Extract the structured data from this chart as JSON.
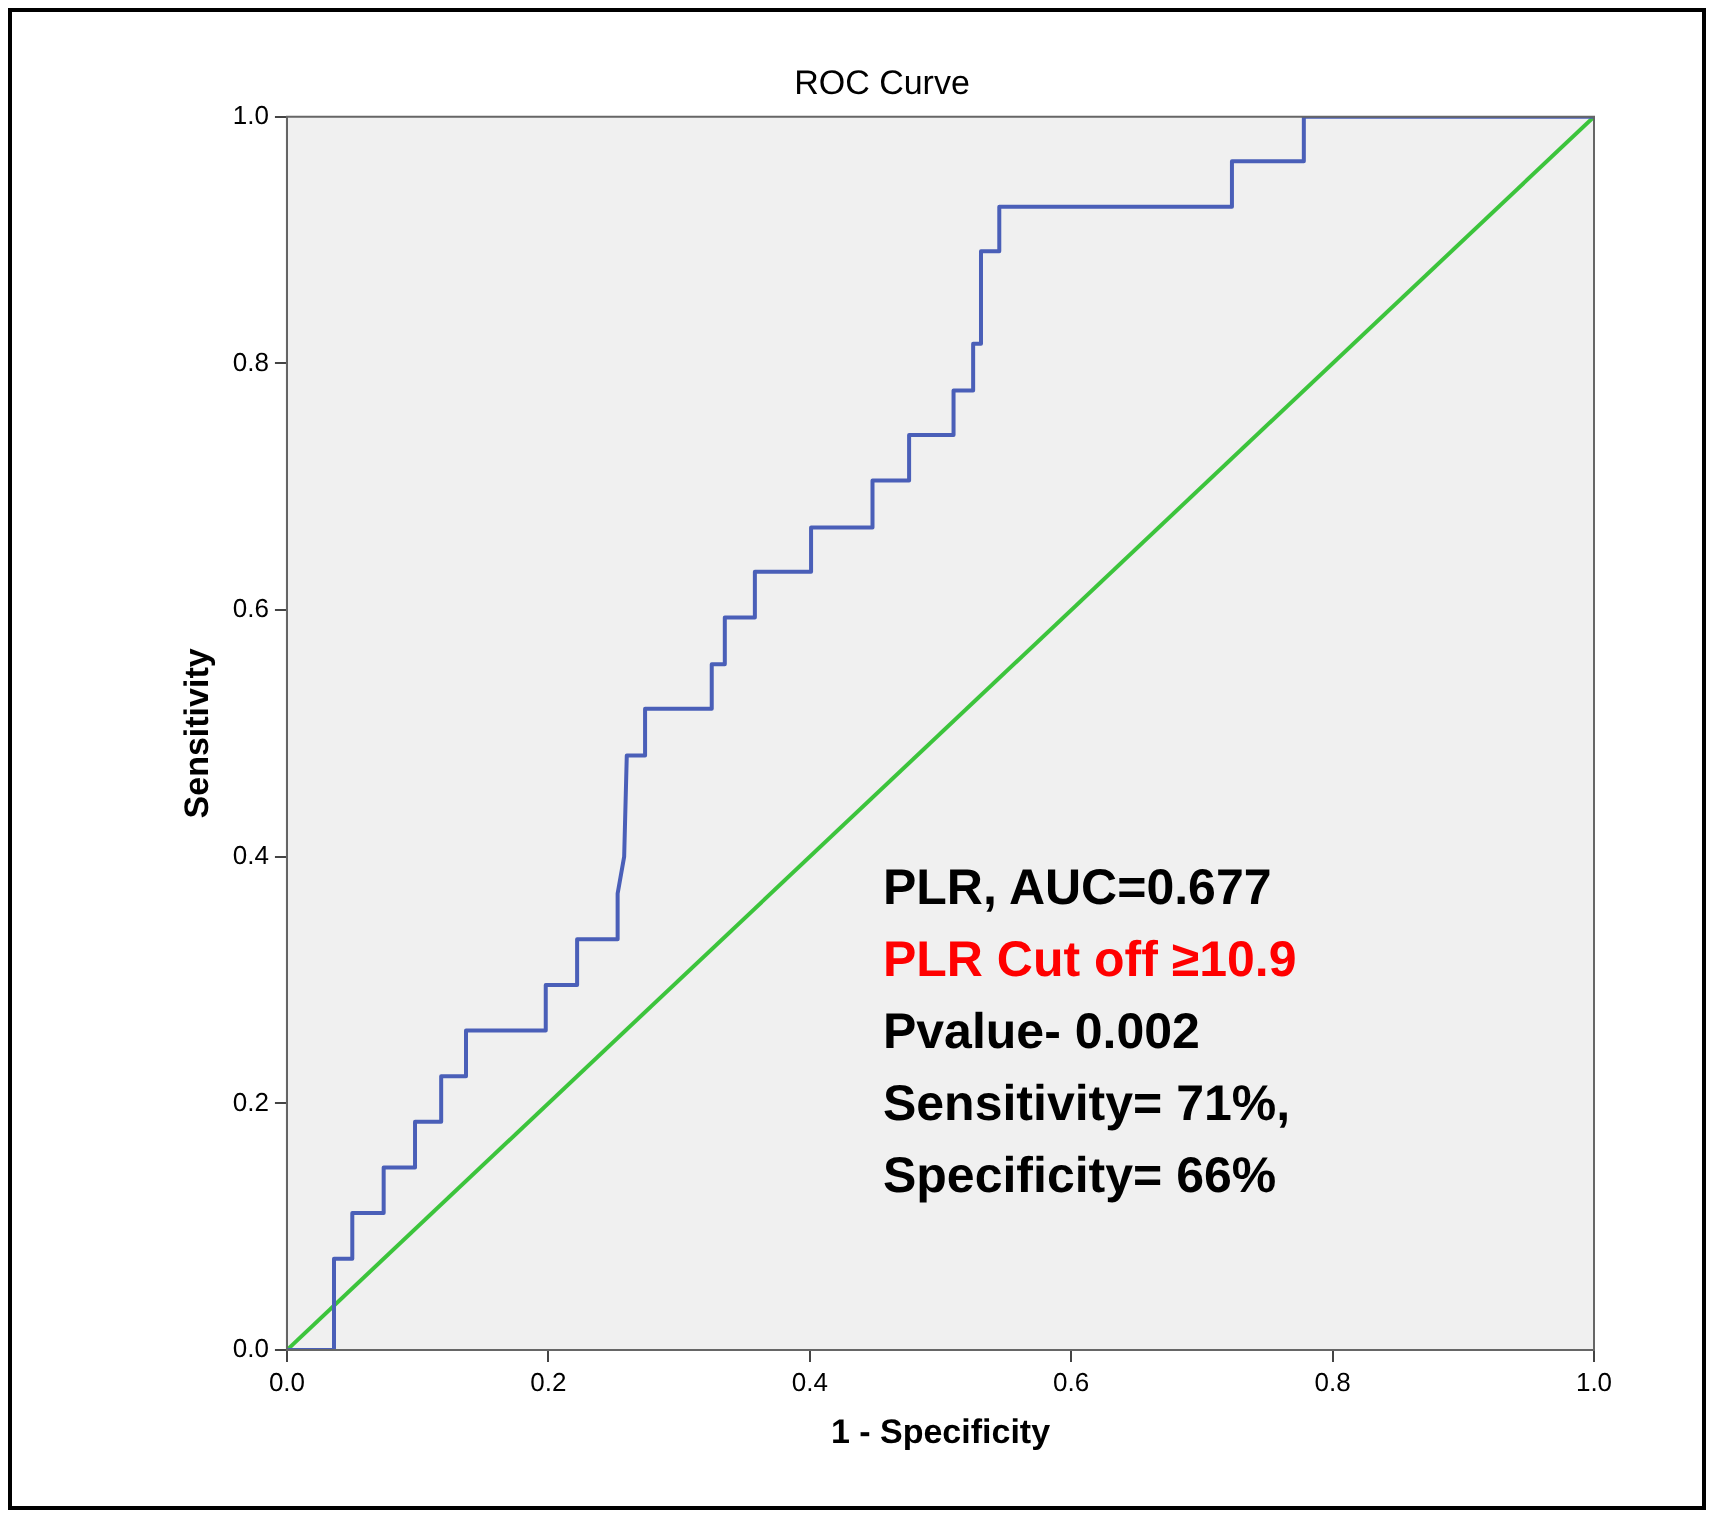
{
  "chart_data": {
    "type": "line",
    "title": "ROC Curve",
    "xlabel": "1 - Specificity",
    "ylabel": "Sensitivity",
    "xlim": [
      0,
      1
    ],
    "ylim": [
      0,
      1
    ],
    "xticks": [
      {
        "value": 0,
        "label": "0.0"
      },
      {
        "value": 0.2,
        "label": "0.2"
      },
      {
        "value": 0.4,
        "label": "0.4"
      },
      {
        "value": 0.6,
        "label": "0.6"
      },
      {
        "value": 0.8,
        "label": "0.8"
      },
      {
        "value": 1,
        "label": "1.0"
      }
    ],
    "yticks": [
      {
        "value": 0,
        "label": "0.0"
      },
      {
        "value": 0.2,
        "label": "0.2"
      },
      {
        "value": 0.4,
        "label": "0.4"
      },
      {
        "value": 0.6,
        "label": "0.6"
      },
      {
        "value": 0.8,
        "label": "0.8"
      },
      {
        "value": 1,
        "label": "1.0"
      }
    ],
    "grid": false,
    "legend": false,
    "marker": "none",
    "line_style": "solid",
    "series": [
      {
        "color": "#4a5fb8",
        "x": [
          0,
          0.036,
          0.036,
          0.05,
          0.05,
          0.074,
          0.074,
          0.098,
          0.098,
          0.118,
          0.118,
          0.137,
          0.137,
          0.198,
          0.198,
          0.222,
          0.222,
          0.253,
          0.253,
          0.258,
          0.26,
          0.274,
          0.274,
          0.325,
          0.325,
          0.335,
          0.335,
          0.358,
          0.358,
          0.401,
          0.401,
          0.448,
          0.448,
          0.476,
          0.476,
          0.51,
          0.51,
          0.525,
          0.525,
          0.531,
          0.531,
          0.545,
          0.545,
          0.723,
          0.723,
          0.778,
          0.778,
          1
        ],
        "values": [
          0,
          0,
          0.074,
          0.074,
          0.111,
          0.111,
          0.148,
          0.148,
          0.185,
          0.185,
          0.222,
          0.222,
          0.259,
          0.259,
          0.296,
          0.296,
          0.333,
          0.333,
          0.37,
          0.4,
          0.482,
          0.482,
          0.52,
          0.52,
          0.556,
          0.556,
          0.594,
          0.594,
          0.631,
          0.631,
          0.667,
          0.667,
          0.705,
          0.705,
          0.742,
          0.742,
          0.778,
          0.778,
          0.816,
          0.816,
          0.891,
          0.891,
          0.927,
          0.927,
          0.964,
          0.964,
          1,
          1
        ]
      },
      {
        "color": "#3cc43c",
        "x": [
          0,
          1
        ],
        "values": [
          0,
          1
        ]
      }
    ],
    "annotations": [
      "PLR, AUC=0.677",
      "PLR Cut off ≥10.9",
      "Pvalue- 0.002",
      "Sensitivity= 71%,",
      "Specificity= 66%"
    ]
  }
}
